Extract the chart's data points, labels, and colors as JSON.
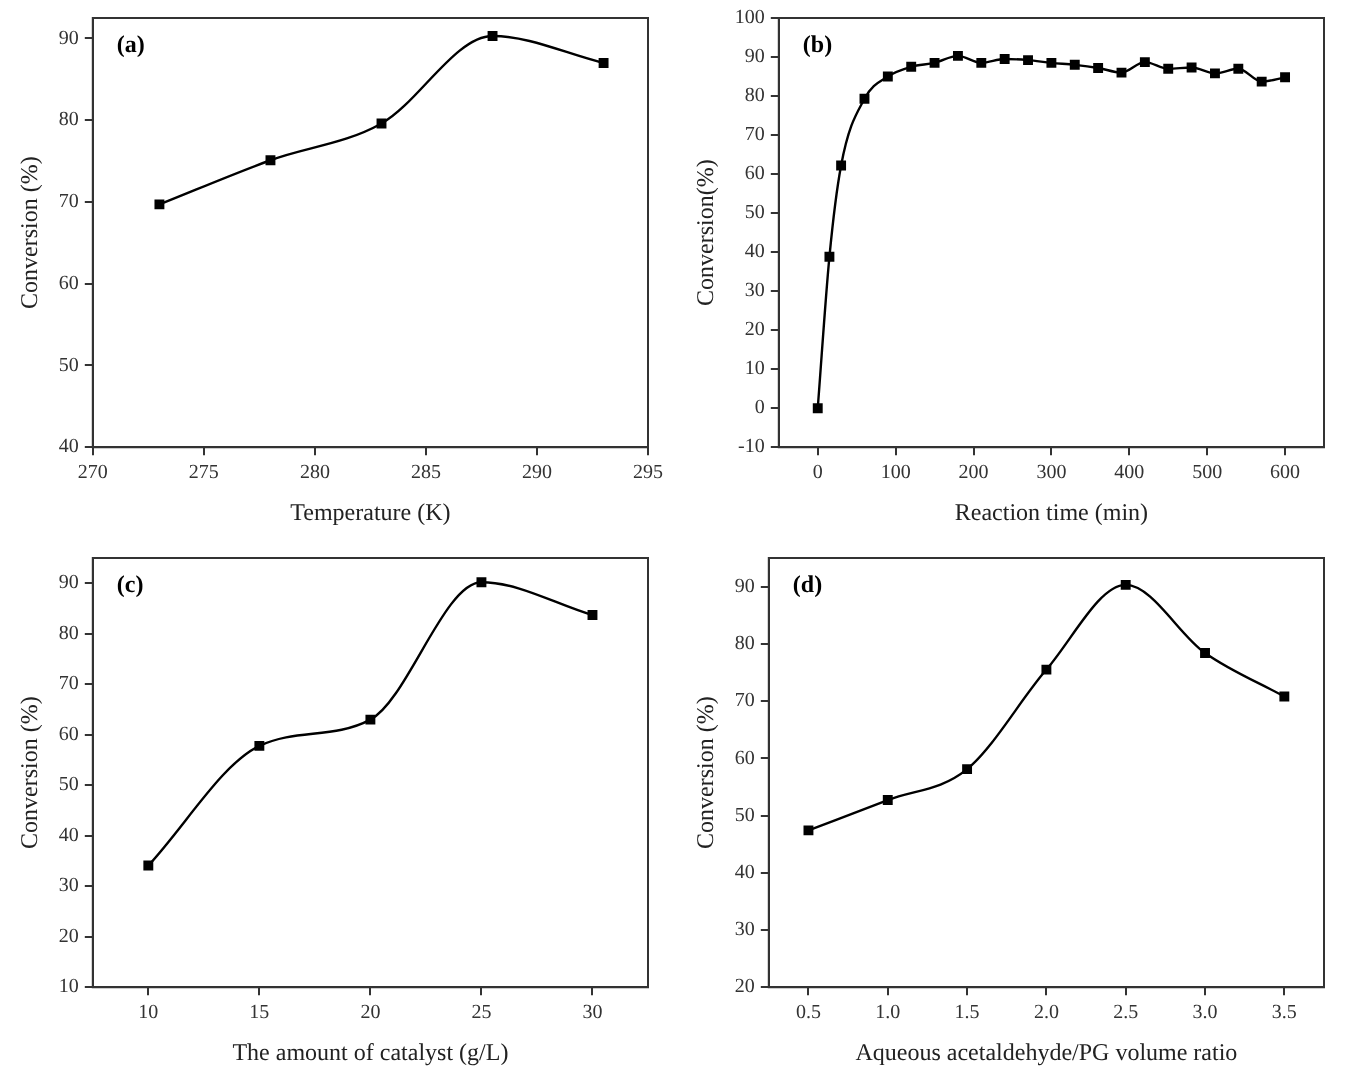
{
  "chart_data": [
    {
      "type": "line",
      "annotations": [
        "(a)"
      ],
      "xlabel": "Temperature (K)",
      "ylabel": "Conversion (%)",
      "x": [
        273,
        278,
        283,
        288,
        293
      ],
      "series": [
        {
          "color": "#000000",
          "values": [
            69.7,
            75.1,
            79.6,
            90.3,
            87.0
          ]
        }
      ],
      "xlim": [
        270,
        295
      ],
      "xticks": [
        270,
        275,
        280,
        285,
        290,
        295
      ],
      "ylim": [
        40,
        92.5
      ],
      "yticks": [
        40,
        50,
        60,
        70,
        80,
        90
      ],
      "marker": "square",
      "grid": false,
      "legend": false
    },
    {
      "type": "line",
      "annotations": [
        "(b)"
      ],
      "xlabel": "Reaction time (min)",
      "ylabel": "Conversion(%)",
      "x": [
        0,
        15,
        30,
        60,
        90,
        120,
        150,
        180,
        210,
        240,
        270,
        300,
        330,
        360,
        390,
        420,
        450,
        480,
        510,
        540,
        570,
        600
      ],
      "series": [
        {
          "color": "#000000",
          "values": [
            0,
            38.8,
            62.2,
            79.3,
            85,
            87.5,
            88.5,
            90.3,
            88.5,
            89.5,
            89.2,
            88.5,
            88,
            87.2,
            86,
            88.7,
            87,
            87.3,
            85.8,
            87,
            83.7,
            84.8
          ]
        }
      ],
      "xlim": [
        -50,
        650
      ],
      "xticks": [
        0,
        100,
        200,
        300,
        400,
        500,
        600
      ],
      "ylim": [
        -10,
        100
      ],
      "yticks": [
        -10,
        0,
        10,
        20,
        30,
        40,
        50,
        60,
        70,
        80,
        90,
        100
      ],
      "marker": "square",
      "grid": false,
      "legend": false
    },
    {
      "type": "line",
      "annotations": [
        "(c)"
      ],
      "xlabel": "The amount of catalyst (g/L)",
      "ylabel": "Conversion (%)",
      "x": [
        10,
        15,
        20,
        25,
        30
      ],
      "series": [
        {
          "color": "#000000",
          "values": [
            34.1,
            57.8,
            63,
            90.2,
            83.7
          ]
        }
      ],
      "xlim": [
        7.5,
        32.5
      ],
      "xticks": [
        10,
        15,
        20,
        25,
        30
      ],
      "ylim": [
        10,
        95
      ],
      "yticks": [
        10,
        20,
        30,
        40,
        50,
        60,
        70,
        80,
        90
      ],
      "marker": "square",
      "grid": false,
      "legend": false
    },
    {
      "type": "line",
      "annotations": [
        "(d)"
      ],
      "xlabel": "Aqueous acetaldehyde/PG volume ratio",
      "ylabel": "Conversion (%)",
      "x": [
        0.5,
        1,
        1.5,
        2,
        2.5,
        3,
        3.5
      ],
      "series": [
        {
          "color": "#000000",
          "values": [
            47.4,
            52.7,
            58.1,
            75.5,
            90.3,
            78.4,
            70.8
          ]
        }
      ],
      "xlim": [
        0.25,
        3.75
      ],
      "xticks": [
        {
          "value": 0.5,
          "label": "0.5"
        },
        {
          "value": 1,
          "label": "1.0"
        },
        {
          "value": 1.5,
          "label": "1.5"
        },
        {
          "value": 2,
          "label": "2.0"
        },
        {
          "value": 2.5,
          "label": "2.5"
        },
        {
          "value": 3,
          "label": "3.0"
        },
        {
          "value": 3.5,
          "label": "3.5"
        }
      ],
      "ylim": [
        20,
        95
      ],
      "yticks": [
        20,
        30,
        40,
        50,
        60,
        70,
        80,
        90
      ],
      "marker": "square",
      "grid": false,
      "legend": false
    }
  ]
}
